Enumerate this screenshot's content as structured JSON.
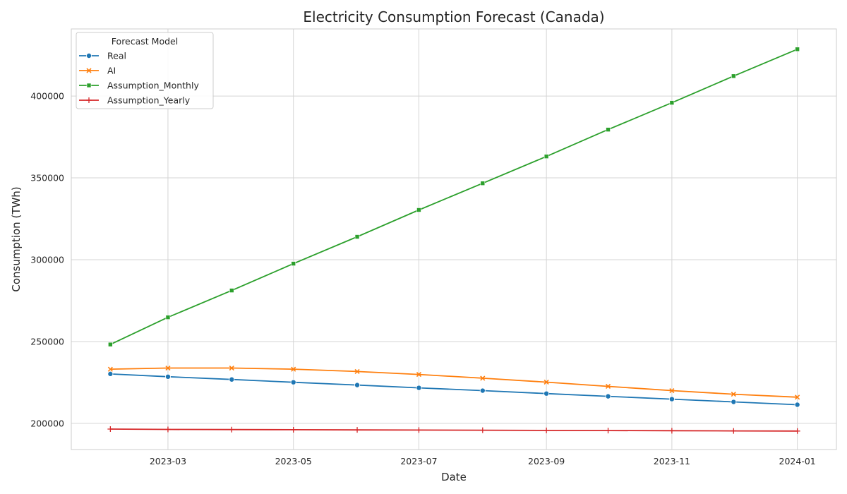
{
  "chart_data": {
    "type": "line",
    "title": "Electricity Consumption Forecast (Canada)",
    "xlabel": "Date",
    "ylabel": "Consumption (TWh)",
    "x": [
      "2023-02-01",
      "2023-03-01",
      "2023-04-01",
      "2023-05-01",
      "2023-06-01",
      "2023-07-01",
      "2023-08-01",
      "2023-09-01",
      "2023-10-01",
      "2023-11-01",
      "2023-12-01",
      "2024-01-01"
    ],
    "xticks": [
      "2023-03",
      "2023-05",
      "2023-07",
      "2023-09",
      "2023-11",
      "2024-01"
    ],
    "yticks": [
      200000,
      250000,
      300000,
      350000,
      400000
    ],
    "ylim": [
      184000,
      441000
    ],
    "xlim": [
      "2023-01-13",
      "2024-01-20"
    ],
    "grid": true,
    "legend": {
      "title": "Forecast Model",
      "placement": "top-left"
    },
    "series": [
      {
        "name": "Real",
        "color": "#1f77b4",
        "marker": "circle",
        "values": [
          230200,
          228500,
          226800,
          225100,
          223400,
          221700,
          220000,
          218200,
          216500,
          214800,
          213100,
          211400
        ]
      },
      {
        "name": "AI",
        "color": "#ff7f0e",
        "marker": "x",
        "values": [
          233100,
          233800,
          233800,
          233100,
          231700,
          229900,
          227600,
          225200,
          222600,
          220000,
          217800,
          216000
        ]
      },
      {
        "name": "Assumption_Monthly",
        "color": "#2ca02c",
        "marker": "square",
        "values": [
          248200,
          264800,
          281200,
          297600,
          314000,
          330400,
          346700,
          363100,
          379500,
          395900,
          412200,
          428600
        ]
      },
      {
        "name": "Assumption_Yearly",
        "color": "#d62728",
        "marker": "plus",
        "values": [
          196500,
          196300,
          196200,
          196100,
          196000,
          195900,
          195800,
          195700,
          195600,
          195500,
          195400,
          195300
        ]
      }
    ]
  }
}
